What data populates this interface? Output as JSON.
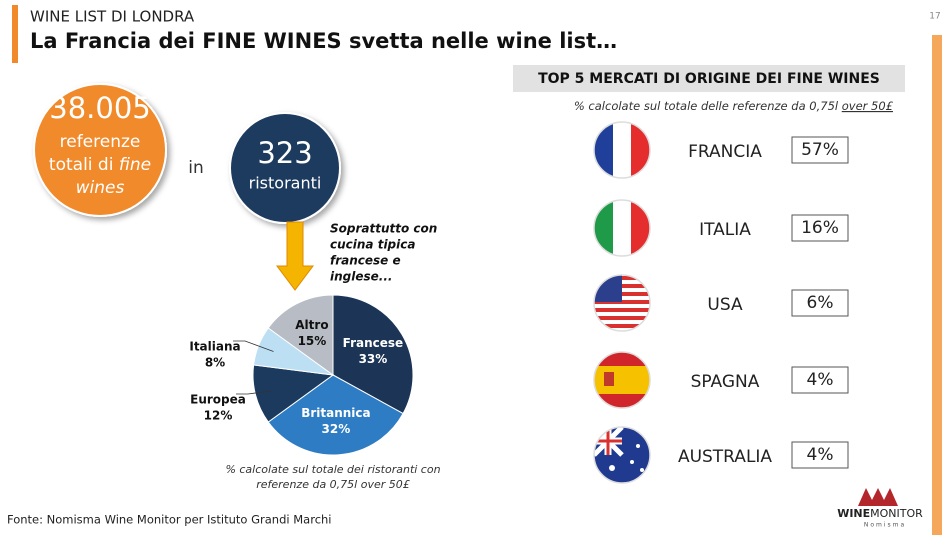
{
  "header": {
    "section": "WINE LIST DI LONDRA",
    "title": "La Francia dei FINE WINES svetta nelle wine list…",
    "page": "17"
  },
  "left": {
    "total": "38.005",
    "total_line1": "referenze",
    "total_line2": "totali di",
    "total_line2_italic": "fine",
    "total_line3": "wines",
    "in": "in",
    "restaurants": "323",
    "restaurants_label": "ristoranti",
    "cuisine_note": [
      "Soprattutto con",
      "cucina tipica",
      "francese e",
      "inglese..."
    ]
  },
  "chart_data": {
    "type": "pie",
    "categories": [
      "Francese",
      "Britannica",
      "Europea",
      "Italiana",
      "Altro"
    ],
    "values": [
      33,
      32,
      12,
      8,
      15
    ],
    "value_labels": [
      "33%",
      "32%",
      "12%",
      "8%",
      "15%"
    ],
    "colors": [
      "#1c3557",
      "#2e7cc4",
      "#1b3a5e",
      "#bcdff3",
      "#b8bcc4"
    ],
    "note": [
      "% calcolate sul totale dei ristoranti con",
      "referenze da 0,75l over 50£"
    ]
  },
  "markets": {
    "title": "TOP 5 MERCATI DI ORIGINE DEI FINE WINES",
    "subtitle": "% calcolate sul totale delle referenze da 0,75l",
    "subtitle_underlined": "over 50£",
    "items": [
      {
        "country": "FRANCIA",
        "share": "57%"
      },
      {
        "country": "ITALIA",
        "share": "16%"
      },
      {
        "country": "USA",
        "share": "6%"
      },
      {
        "country": "SPAGNA",
        "share": "4%"
      },
      {
        "country": "AUSTRALIA",
        "share": "4%"
      }
    ]
  },
  "footer": {
    "source": "Fonte: Nomisma Wine Monitor per Istituto Grandi Marchi",
    "logo_bold": "WINE",
    "logo_rest": "MONITOR",
    "logo_sub": "Nomisma"
  }
}
